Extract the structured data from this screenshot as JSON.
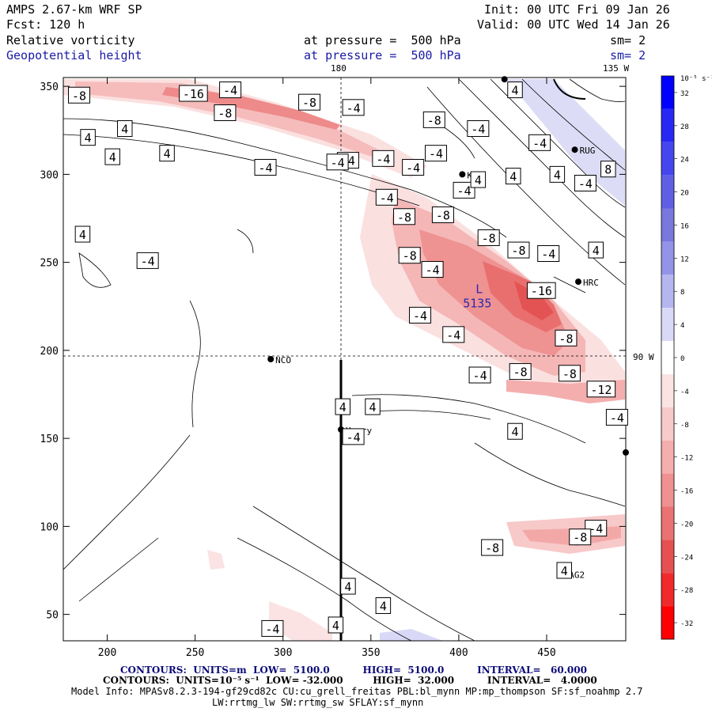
{
  "header": {
    "model": "AMPS 2.67-km WRF SP",
    "fcst": "Fcst: 120 h",
    "init": "Init: 00 UTC Fri 09 Jan 26",
    "valid": "Valid: 00 UTC Wed 14 Jan 26",
    "field1": "Relative vorticity",
    "field1_level": "at pressure =  500 hPa",
    "field1_sm": "sm= 2",
    "field2": "Geopotential height",
    "field2_level": "at pressure =  500 hPa",
    "field2_sm": "sm= 2"
  },
  "chart_data": {
    "type": "contour-map",
    "title": "Relative vorticity and Geopotential height at 500 hPa",
    "x_ticks": [
      200,
      250,
      300,
      350,
      400,
      450
    ],
    "y_ticks": [
      50,
      100,
      150,
      200,
      250,
      300,
      350
    ],
    "xlim": [
      175,
      495
    ],
    "ylim": [
      35,
      355
    ],
    "meridian_labels": [
      "180",
      "135 W",
      "90 W"
    ],
    "colorbar": {
      "units_label": "10⁻⁵ s⁻¹",
      "levels": [
        32,
        28,
        24,
        20,
        16,
        12,
        8,
        4,
        0,
        -4,
        -8,
        -12,
        -16,
        -20,
        -24,
        -28,
        -32
      ],
      "colors": [
        "#0000ff",
        "#2828f5",
        "#4646ee",
        "#5f5fe6",
        "#7878dd",
        "#9393e8",
        "#b5b5f0",
        "#d9d9f7",
        "#ffffff",
        "#fbe3e3",
        "#f8c9c9",
        "#f4aeae",
        "#f09090",
        "#eb7272",
        "#e55050",
        "#f02a2a",
        "#ff0000"
      ]
    },
    "stations": [
      {
        "name": "NCO",
        "x": 293,
        "y": 195
      },
      {
        "name": "Henry",
        "x": 333,
        "y": 155
      },
      {
        "name": "KLN",
        "x": 402,
        "y": 300
      },
      {
        "name": "RUG",
        "x": 466,
        "y": 314
      },
      {
        "name": "HRC",
        "x": 468,
        "y": 239
      },
      {
        "name": "AG2",
        "x": 460,
        "y": 73
      },
      {
        "name": "",
        "x": 426,
        "y": 354
      },
      {
        "name": "",
        "x": 495,
        "y": 142
      }
    ],
    "contour_labels": [
      {
        "text": "-8",
        "x": 184,
        "y": 345
      },
      {
        "text": "-16",
        "x": 249,
        "y": 346
      },
      {
        "text": "-4",
        "x": 270,
        "y": 348
      },
      {
        "text": "-8",
        "x": 315,
        "y": 341
      },
      {
        "text": "-8",
        "x": 267,
        "y": 335
      },
      {
        "text": "-4",
        "x": 340,
        "y": 338
      },
      {
        "text": "-8",
        "x": 386,
        "y": 331
      },
      {
        "text": "4",
        "x": 210,
        "y": 326
      },
      {
        "text": "4",
        "x": 189,
        "y": 321
      },
      {
        "text": "4",
        "x": 234,
        "y": 312
      },
      {
        "text": "4",
        "x": 203,
        "y": 310
      },
      {
        "text": "-4",
        "x": 337,
        "y": 308
      },
      {
        "text": "-4",
        "x": 357,
        "y": 309
      },
      {
        "text": "-4",
        "x": 387,
        "y": 312
      },
      {
        "text": "-4",
        "x": 411,
        "y": 326
      },
      {
        "text": "4",
        "x": 432,
        "y": 348
      },
      {
        "text": "-4",
        "x": 446,
        "y": 318
      },
      {
        "text": "8",
        "x": 485,
        "y": 303
      },
      {
        "text": "-4",
        "x": 290,
        "y": 304
      },
      {
        "text": "-4",
        "x": 331,
        "y": 307
      },
      {
        "text": "4",
        "x": 456,
        "y": 300
      },
      {
        "text": "-4",
        "x": 374,
        "y": 304
      },
      {
        "text": "-4",
        "x": 359,
        "y": 287
      },
      {
        "text": "-4",
        "x": 403,
        "y": 291
      },
      {
        "text": "4",
        "x": 411,
        "y": 297
      },
      {
        "text": "4",
        "x": 431,
        "y": 299
      },
      {
        "text": "-4",
        "x": 472,
        "y": 295
      },
      {
        "text": "-8",
        "x": 369,
        "y": 276
      },
      {
        "text": "-8",
        "x": 391,
        "y": 277
      },
      {
        "text": "-8",
        "x": 417,
        "y": 264
      },
      {
        "text": "4",
        "x": 186,
        "y": 266
      },
      {
        "text": "-4",
        "x": 223,
        "y": 251
      },
      {
        "text": "-8",
        "x": 372,
        "y": 254
      },
      {
        "text": "-8",
        "x": 434,
        "y": 257
      },
      {
        "text": "-4",
        "x": 451,
        "y": 255
      },
      {
        "text": "4",
        "x": 478,
        "y": 257
      },
      {
        "text": "-4",
        "x": 385,
        "y": 246
      },
      {
        "text": "-16",
        "x": 447,
        "y": 234
      },
      {
        "text": "-4",
        "x": 378,
        "y": 220
      },
      {
        "text": "-4",
        "x": 397,
        "y": 209
      },
      {
        "text": "-8",
        "x": 461,
        "y": 207
      },
      {
        "text": "-8",
        "x": 435,
        "y": 188
      },
      {
        "text": "-4",
        "x": 412,
        "y": 186
      },
      {
        "text": "-8",
        "x": 463,
        "y": 187
      },
      {
        "text": "-12",
        "x": 481,
        "y": 178
      },
      {
        "text": "4",
        "x": 334,
        "y": 168
      },
      {
        "text": "4",
        "x": 351,
        "y": 168
      },
      {
        "text": "-4",
        "x": 490,
        "y": 162
      },
      {
        "text": "4",
        "x": 432,
        "y": 154
      },
      {
        "text": "-4",
        "x": 340,
        "y": 151
      },
      {
        "text": "-4",
        "x": 478,
        "y": 99
      },
      {
        "text": "-8",
        "x": 469,
        "y": 94
      },
      {
        "text": "-8",
        "x": 419,
        "y": 88
      },
      {
        "text": "4",
        "x": 460,
        "y": 75
      },
      {
        "text": "4",
        "x": 337,
        "y": 66
      },
      {
        "text": "4",
        "x": 357,
        "y": 55
      },
      {
        "text": "-4",
        "x": 294,
        "y": 42
      },
      {
        "text": "4",
        "x": 330,
        "y": 44
      }
    ],
    "low_center": {
      "label": "L",
      "value": "5135",
      "x": 415,
      "y": 228
    }
  },
  "footer": {
    "line1": "CONTOURS:  UNITS=m  LOW=  5100.0          HIGH=  5100.0          INTERVAL=   60.000",
    "line2": "CONTOURS:  UNITS=10⁻⁵ s⁻¹  LOW= -32.000         HIGH=  32.000          INTERVAL=   4.0000",
    "line3": "Model Info: MPASv8.2.3-194-gf29cd82c CU:cu_grell_freitas PBL:bl_mynn MP:mp_thompson SF:sf_noahmp 2.7",
    "line4": "LW:rrtmg_lw SW:rrtmg_sw SFLAY:sf_mynn"
  }
}
